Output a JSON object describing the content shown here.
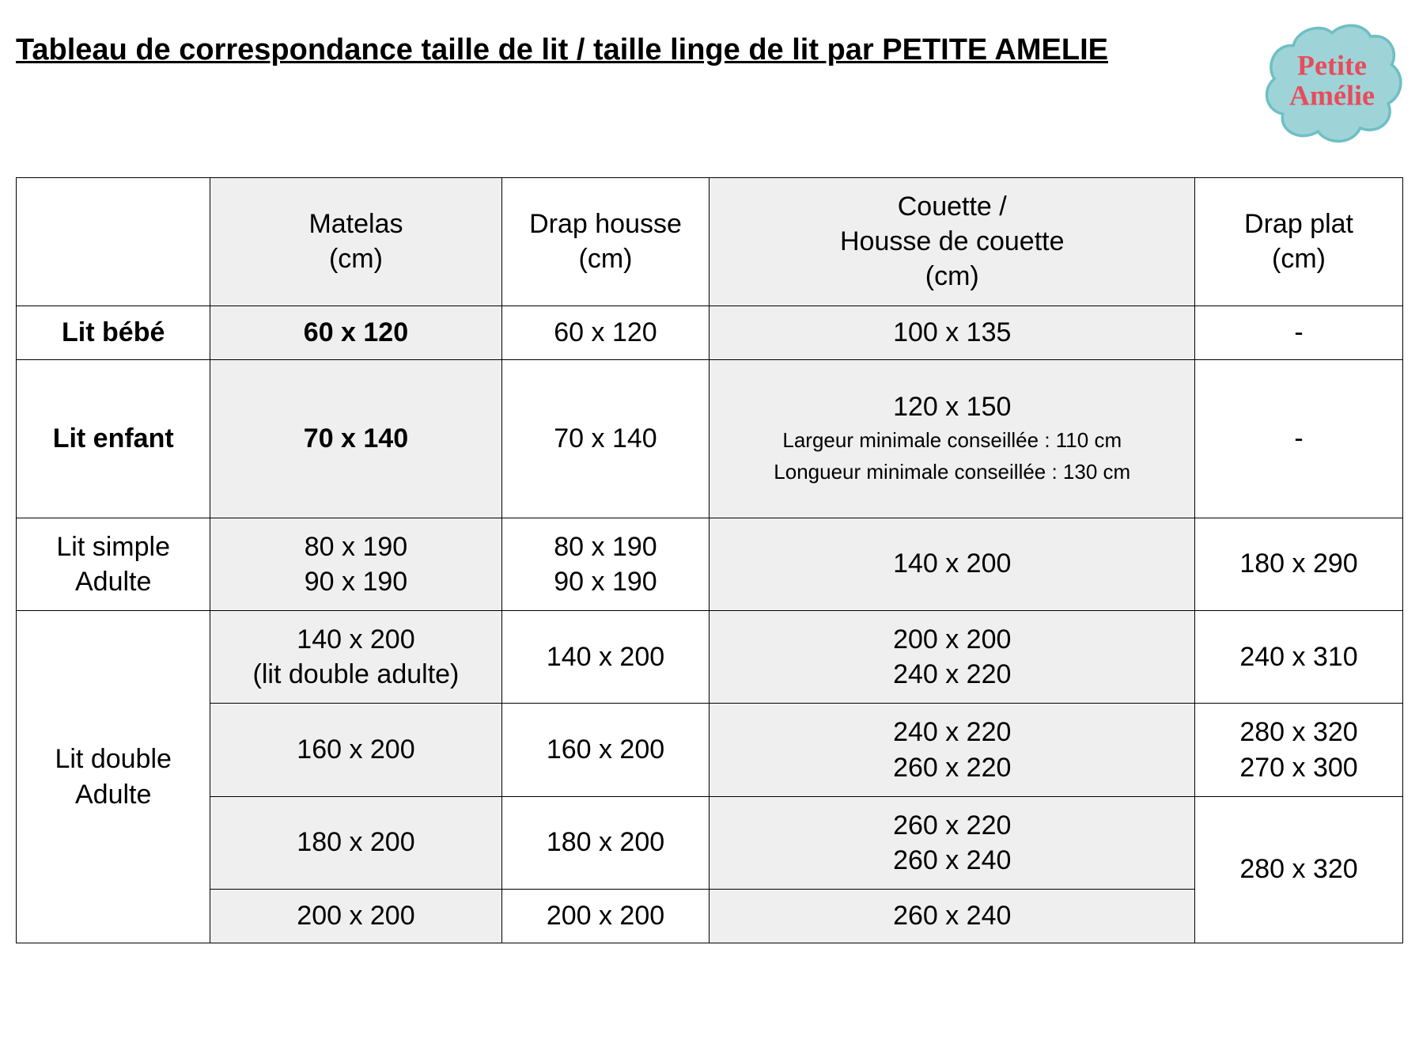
{
  "title": "Tableau de correspondance taille de lit / taille linge de lit par PETITE AMELIE",
  "logo": {
    "line1": "Petite",
    "line2": "Amélie",
    "badge_fill": "#9ed4d8",
    "badge_stroke": "#6fbfc4",
    "text_color": "#e94b5a"
  },
  "colors": {
    "shaded_bg": "#efefef",
    "border": "#000000",
    "background": "#ffffff"
  },
  "columns": [
    "",
    "Matelas\n(cm)",
    "Drap housse\n(cm)",
    "Couette /\nHousse de couette\n(cm)",
    "Drap plat\n(cm)"
  ],
  "rows": {
    "bebe": {
      "label": "Lit bébé",
      "matelas": "60 x 120",
      "drap_housse": "60 x 120",
      "couette": "100 x 135",
      "drap_plat": "-",
      "bold": true
    },
    "enfant": {
      "label": "Lit enfant",
      "matelas": "70 x 140",
      "drap_housse": "70 x 140",
      "couette_main": "120 x 150",
      "couette_note1": "Largeur minimale conseillée : 110 cm",
      "couette_note2": "Longueur minimale conseillée : 130 cm",
      "drap_plat": "-",
      "bold": true
    },
    "simple": {
      "label": "Lit simple\nAdulte",
      "matelas": "80 x 190\n90 x 190",
      "drap_housse": "80 x 190\n90 x 190",
      "couette": "140 x 200",
      "drap_plat": "180 x 290"
    },
    "double": {
      "label": "Lit double\nAdulte",
      "r1": {
        "matelas": "140 x 200\n(lit double adulte)",
        "drap_housse": "140 x 200",
        "couette": "200 x 200\n240 x 220",
        "drap_plat": "240 x 310"
      },
      "r2": {
        "matelas": "160 x 200",
        "drap_housse": "160 x 200",
        "couette": "240 x 220\n260 x 220",
        "drap_plat": "280 x 320\n270 x 300"
      },
      "r3": {
        "matelas": "180 x 200",
        "drap_housse": "180 x 200",
        "couette": "260 x 220\n260 x 240",
        "drap_plat_merged": "280 x 320"
      },
      "r4": {
        "matelas": "200 x 200",
        "drap_housse": "200 x 200",
        "couette": "260 x 240"
      }
    }
  }
}
